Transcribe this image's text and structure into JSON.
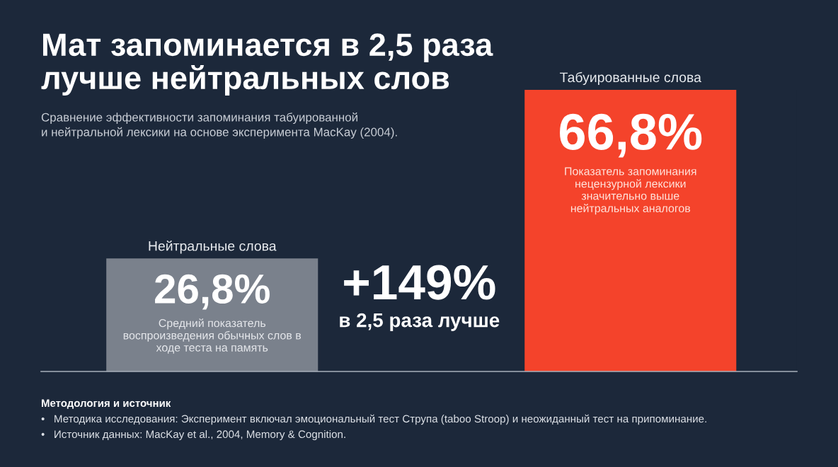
{
  "chart_data": {
    "type": "bar",
    "title": "Мат запоминается в 2,5 раза\nлучше нейтральных слов",
    "subtitle": "Сравнение эффективности запоминания табуированной\nи нейтральной лексики на основе эксперимента MacKay (2004).",
    "categories": [
      "Нейтральные слова",
      "Табуированные слова"
    ],
    "values": [
      26.8,
      66.8
    ],
    "colors": [
      "#7a818c",
      "#f4432b"
    ],
    "value_labels": [
      "26,8%",
      "66,8%"
    ],
    "annotations": [
      "Средний показатель\nвоспроизведения обычных слов в\nходе теста на память",
      "Показатель запоминания\nнецензурной лексики\nзначительно выше\nнейтральных аналогов",
      "+149%",
      "в 2,5 раза лучше",
      "Методология и источник",
      "•   Методика исследования: Эксперимент включал эмоциональный тест Струпа (taboo Stroop) и неожиданный тест на припоминание.",
      "•   Источник данных: MacKay et al., 2004, Memory & Cognition."
    ]
  }
}
